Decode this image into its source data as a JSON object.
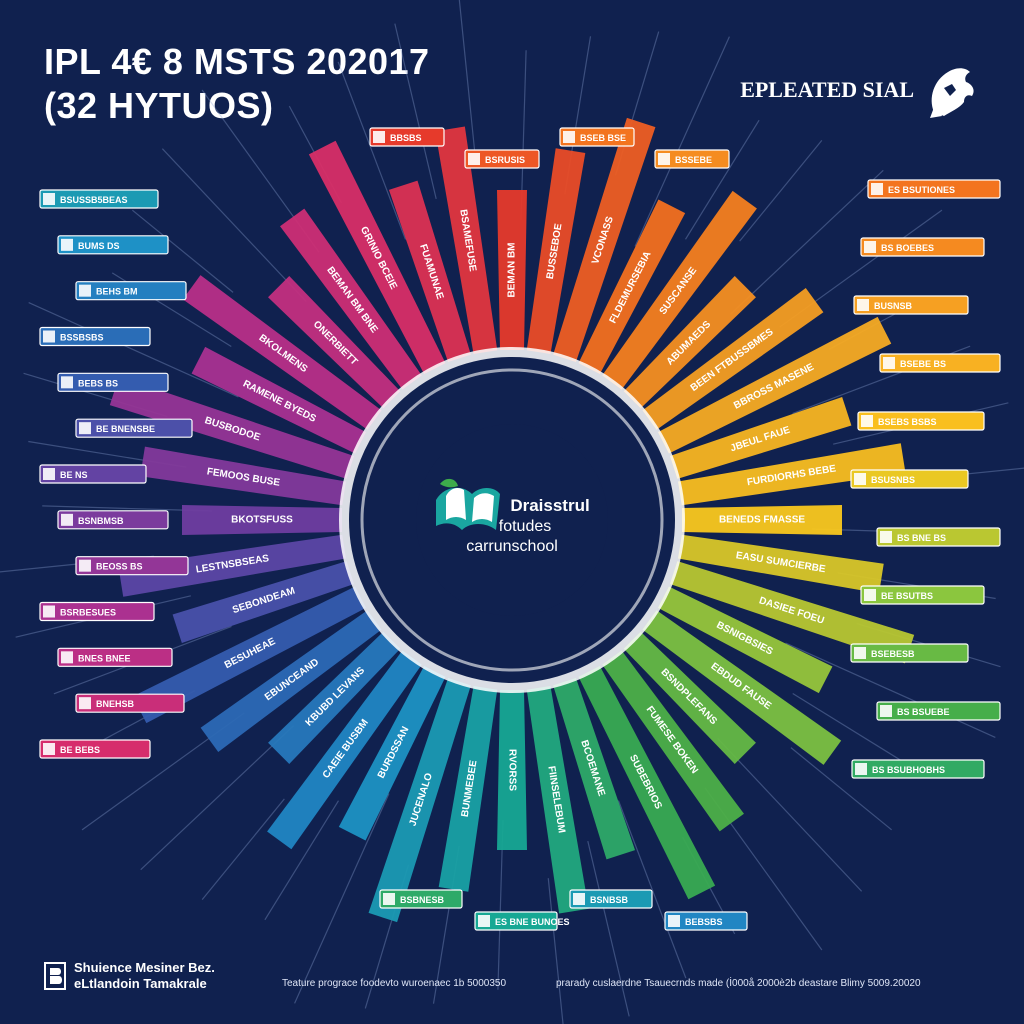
{
  "header": {
    "title_line1": "IPL 4€ 8 MSTS 202017",
    "title_line2": "(32 HYTUOS)"
  },
  "brand": {
    "name": "EPLEATED SIAL",
    "icon": "lion-mascot-icon"
  },
  "center": {
    "line1": "Draisstrul",
    "line2": "fotudes",
    "line3": "carrunschool",
    "icon": "leaf-book-logo-icon"
  },
  "footer": {
    "left_line1": "Shuience Mesiner Bez.",
    "left_line2": "eLtlandoin Tamakrale",
    "note1": "Teature prograce foodevto wuroenaec 1b 5000350",
    "note2": "prarady cuslaerdne  Tsauecrnds made  (İ000å 2000è2b deastare Blimy 5009.20020"
  },
  "colors": {
    "background": "#10214f",
    "ring": "#ffffff",
    "hub": "#10214f",
    "palette": [
      "#e63a2b",
      "#f4761e",
      "#f7a823",
      "#fac81e",
      "#8cc63e",
      "#3dab4b",
      "#17a894",
      "#1e90c8",
      "#2f5fb0",
      "#6f3da0",
      "#b0308f",
      "#d62d6e"
    ]
  },
  "spokes": [
    {
      "label": "BEMAN BM"
    },
    {
      "label": "BUSSEBOE"
    },
    {
      "label": "VCONASS"
    },
    {
      "label": "FLDEMURSEBIA"
    },
    {
      "label": "SUSCANSE"
    },
    {
      "label": "ABUMAEDS"
    },
    {
      "label": "BEEN FTBUSSBMES"
    },
    {
      "label": "BBROSS MASENE"
    },
    {
      "label": "JBEUL FAUE"
    },
    {
      "label": "FURDIORHS BEBE"
    },
    {
      "label": "BENEDS FMASSE"
    },
    {
      "label": "EASU SUMCIERBE"
    },
    {
      "label": "DASIEE FOEU"
    },
    {
      "label": "BSNIGBSIES"
    },
    {
      "label": "EBDUD FAUSE"
    },
    {
      "label": "BSNDPLEFANS"
    },
    {
      "label": "FUMESE BOKEN"
    },
    {
      "label": "SUBEBRIOS"
    },
    {
      "label": "BCOEMANE"
    },
    {
      "label": "FIINSELEBUM"
    },
    {
      "label": "RVORSS"
    },
    {
      "label": "BUNMEBEE"
    },
    {
      "label": "JUCENALO"
    },
    {
      "label": "BURDSSAN"
    },
    {
      "label": "CAEIE BUSBM"
    },
    {
      "label": "KBUBD LEVANS"
    },
    {
      "label": "EBUNCEAND"
    },
    {
      "label": "BESUHEAE"
    },
    {
      "label": "SEBONDEAM"
    },
    {
      "label": "LESTNSBSEAS"
    },
    {
      "label": "BKOTSFUSS"
    },
    {
      "label": "FEMOOS BUSE"
    },
    {
      "label": "BUSBODOE"
    },
    {
      "label": "RAMENE BYEDS"
    },
    {
      "label": "BKOLMENS"
    },
    {
      "label": "ONERBIETT"
    },
    {
      "label": "BEMAN BM BNE"
    },
    {
      "label": "GRINIO BCEIE"
    },
    {
      "label": "FUAMUNAE"
    },
    {
      "label": "BSAMEFUSE"
    }
  ],
  "tags": [
    {
      "text": "BSUSSB5BEAS",
      "side": "left"
    },
    {
      "text": "BUMS DS",
      "side": "left"
    },
    {
      "text": "BEHS BM",
      "side": "left"
    },
    {
      "text": "BSSBSBS",
      "side": "left"
    },
    {
      "text": "BEBS BS",
      "side": "left"
    },
    {
      "text": "BE BNENSBE",
      "side": "left"
    },
    {
      "text": "BE NS",
      "side": "left"
    },
    {
      "text": "BSNBMSB",
      "side": "left"
    },
    {
      "text": "BEOSS BS",
      "side": "left"
    },
    {
      "text": "BSRBESUES",
      "side": "left"
    },
    {
      "text": "BNES BNEE",
      "side": "left"
    },
    {
      "text": "BNEHSB",
      "side": "left"
    },
    {
      "text": "BE BEBS",
      "side": "left"
    },
    {
      "text": "BBSBS",
      "side": "top"
    },
    {
      "text": "BSRUSIS",
      "side": "top"
    },
    {
      "text": "BSEB BSE",
      "side": "top"
    },
    {
      "text": "BSSEBE",
      "side": "top"
    },
    {
      "text": "ES BSUTIONES",
      "side": "right"
    },
    {
      "text": "BS BOEBES",
      "side": "right"
    },
    {
      "text": "BUSNSB",
      "side": "right"
    },
    {
      "text": "BSEBE BS",
      "side": "right"
    },
    {
      "text": "BSEBS BSBS",
      "side": "right"
    },
    {
      "text": "BSUSNBS",
      "side": "right"
    },
    {
      "text": "BS BNE BS",
      "side": "right"
    },
    {
      "text": "BE BSUTBS",
      "side": "right"
    },
    {
      "text": "BSEBESB",
      "side": "right"
    },
    {
      "text": "BS BSUEBE",
      "side": "right"
    },
    {
      "text": "BS BSUBHOBHS",
      "side": "right"
    },
    {
      "text": "BSBNESB",
      "side": "bottom"
    },
    {
      "text": "ES BNE BUNOES",
      "side": "bottom"
    },
    {
      "text": "BSNBSB",
      "side": "bottom"
    },
    {
      "text": "BEBSBS",
      "side": "bottom"
    }
  ]
}
